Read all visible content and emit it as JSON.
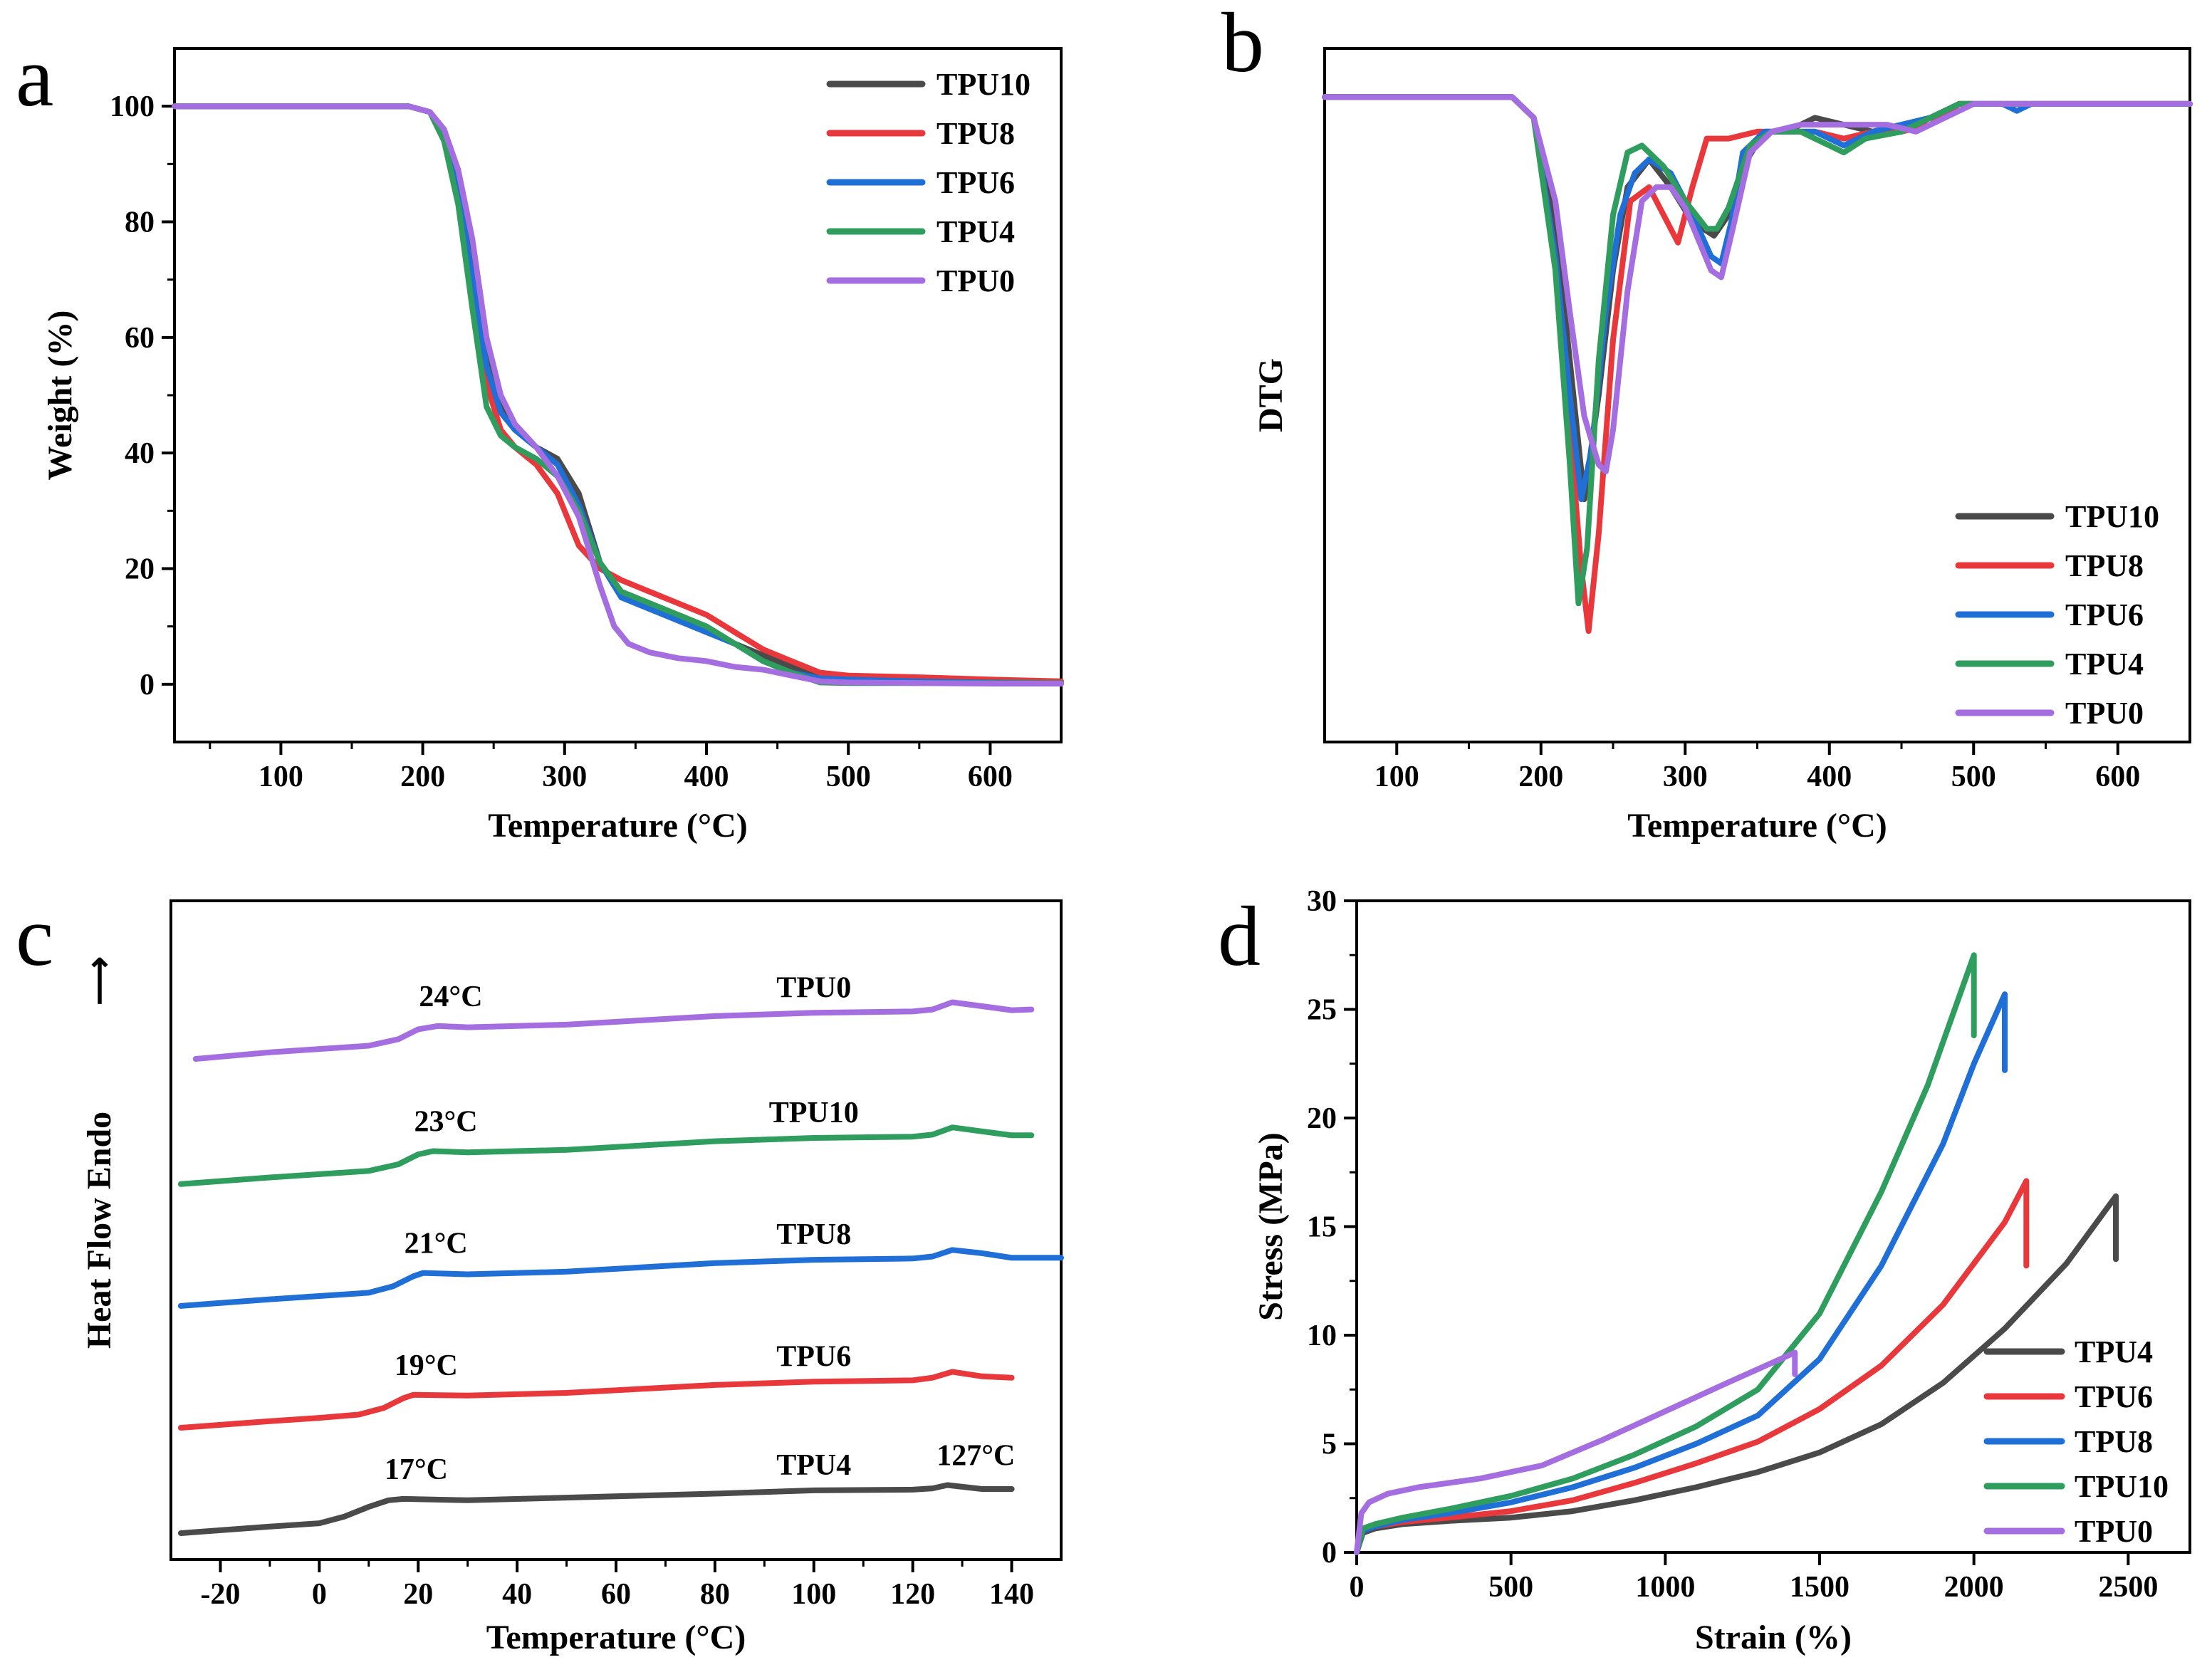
{
  "chart_data": [
    {
      "panel": "a",
      "type": "line",
      "xlabel": "Temperature (°C)",
      "ylabel": "Weight (%)",
      "xlim": [
        25,
        650
      ],
      "ylim": [
        -10,
        110
      ],
      "xticks": [
        100,
        200,
        300,
        400,
        500,
        600
      ],
      "yticks": [
        0,
        20,
        40,
        60,
        80,
        100
      ],
      "legend_position": "top-right",
      "series": [
        {
          "name": "TPU10",
          "color": "#4a4a4a",
          "x": [
            25,
            190,
            205,
            215,
            225,
            235,
            245,
            255,
            265,
            280,
            295,
            310,
            325,
            340,
            360,
            380,
            400,
            420,
            440,
            460,
            480,
            500,
            550,
            600,
            650
          ],
          "y": [
            100,
            100,
            99,
            96,
            88,
            74,
            58,
            48,
            44,
            41,
            39,
            33,
            21,
            16,
            14,
            12,
            10,
            7,
            5,
            3,
            1,
            0.5,
            0.3,
            0.2,
            0.1
          ]
        },
        {
          "name": "TPU8",
          "color": "#e8383b",
          "x": [
            25,
            190,
            205,
            215,
            225,
            235,
            245,
            255,
            265,
            280,
            295,
            310,
            325,
            340,
            360,
            380,
            400,
            420,
            440,
            460,
            480,
            500,
            550,
            600,
            650
          ],
          "y": [
            100,
            100,
            99,
            95,
            85,
            68,
            52,
            44,
            41,
            38,
            33,
            24,
            20,
            18,
            16,
            14,
            12,
            9,
            6,
            4,
            2,
            1.5,
            1.2,
            0.8,
            0.5
          ]
        },
        {
          "name": "TPU6",
          "color": "#1f6fd6",
          "x": [
            25,
            190,
            205,
            215,
            225,
            235,
            245,
            255,
            265,
            280,
            295,
            310,
            325,
            340,
            360,
            380,
            400,
            420,
            440,
            460,
            480,
            500,
            550,
            600,
            650
          ],
          "y": [
            100,
            100,
            99,
            95,
            86,
            70,
            55,
            47,
            44,
            41,
            38,
            31,
            21,
            15,
            13,
            11,
            9,
            7,
            4,
            2,
            1,
            0.8,
            0.5,
            0.3,
            0.2
          ]
        },
        {
          "name": "TPU4",
          "color": "#2e9d5d",
          "x": [
            25,
            190,
            205,
            215,
            225,
            235,
            245,
            255,
            265,
            280,
            295,
            310,
            325,
            340,
            360,
            380,
            400,
            420,
            440,
            460,
            480,
            500,
            550,
            600,
            650
          ],
          "y": [
            100,
            100,
            99,
            94,
            83,
            65,
            48,
            43,
            41,
            39,
            36,
            30,
            21,
            16,
            14,
            12,
            10,
            7,
            4,
            2,
            0.3,
            0.2,
            0.2,
            0.2,
            0.2
          ]
        },
        {
          "name": "TPU0",
          "color": "#a56ee0",
          "x": [
            25,
            190,
            205,
            215,
            225,
            235,
            245,
            255,
            265,
            280,
            295,
            310,
            325,
            335,
            345,
            360,
            380,
            400,
            420,
            440,
            460,
            480,
            500,
            550,
            600,
            650
          ],
          "y": [
            100,
            100,
            99,
            96,
            89,
            77,
            60,
            50,
            45,
            41,
            36,
            29,
            17,
            10,
            7,
            5.5,
            4.5,
            4,
            3,
            2.5,
            1.5,
            0.5,
            0.3,
            0.2,
            0.1,
            0.1
          ]
        }
      ]
    },
    {
      "panel": "b",
      "type": "line",
      "xlabel": "Temperature (°C)",
      "ylabel": "DTG",
      "xlim": [
        50,
        650
      ],
      "ylim": [
        0,
        1
      ],
      "xticks": [
        100,
        200,
        300,
        400,
        500,
        600
      ],
      "yticks": [],
      "legend_position": "bottom-right",
      "series": [
        {
          "name": "TPU10",
          "color": "#4a4a4a",
          "x": [
            50,
            180,
            195,
            210,
            220,
            230,
            240,
            250,
            260,
            275,
            290,
            305,
            320,
            330,
            340,
            355,
            370,
            390,
            410,
            430,
            450,
            470,
            490,
            520,
            550,
            600,
            650
          ],
          "y": [
            0.93,
            0.93,
            0.9,
            0.75,
            0.55,
            0.35,
            0.5,
            0.68,
            0.8,
            0.84,
            0.8,
            0.75,
            0.73,
            0.76,
            0.83,
            0.88,
            0.88,
            0.9,
            0.89,
            0.88,
            0.89,
            0.9,
            0.92,
            0.92,
            0.92,
            0.92,
            0.92
          ]
        },
        {
          "name": "TPU8",
          "color": "#e8383b",
          "x": [
            50,
            180,
            195,
            210,
            220,
            228,
            233,
            240,
            250,
            262,
            275,
            285,
            295,
            305,
            315,
            330,
            350,
            370,
            390,
            410,
            430,
            450,
            470,
            490,
            520,
            550,
            600,
            650
          ],
          "y": [
            0.93,
            0.93,
            0.9,
            0.7,
            0.45,
            0.25,
            0.16,
            0.3,
            0.58,
            0.78,
            0.8,
            0.76,
            0.72,
            0.8,
            0.87,
            0.87,
            0.88,
            0.88,
            0.88,
            0.87,
            0.88,
            0.88,
            0.89,
            0.92,
            0.92,
            0.92,
            0.92,
            0.92
          ]
        },
        {
          "name": "TPU6",
          "color": "#1f6fd6",
          "x": [
            50,
            180,
            195,
            210,
            220,
            228,
            235,
            245,
            255,
            265,
            275,
            290,
            305,
            318,
            325,
            332,
            340,
            355,
            370,
            390,
            410,
            430,
            450,
            470,
            490,
            520,
            530,
            540,
            600,
            650
          ],
          "y": [
            0.93,
            0.93,
            0.9,
            0.7,
            0.5,
            0.35,
            0.42,
            0.62,
            0.76,
            0.82,
            0.84,
            0.82,
            0.76,
            0.7,
            0.69,
            0.75,
            0.85,
            0.88,
            0.88,
            0.88,
            0.86,
            0.88,
            0.89,
            0.9,
            0.92,
            0.92,
            0.91,
            0.92,
            0.92,
            0.92
          ]
        },
        {
          "name": "TPU4",
          "color": "#2e9d5d",
          "x": [
            50,
            180,
            195,
            210,
            220,
            226,
            232,
            240,
            250,
            260,
            270,
            285,
            300,
            315,
            322,
            330,
            345,
            360,
            380,
            400,
            410,
            425,
            450,
            470,
            490,
            520,
            550,
            600,
            650
          ],
          "y": [
            0.93,
            0.93,
            0.9,
            0.68,
            0.4,
            0.2,
            0.28,
            0.55,
            0.76,
            0.85,
            0.86,
            0.83,
            0.78,
            0.74,
            0.74,
            0.77,
            0.86,
            0.88,
            0.88,
            0.86,
            0.85,
            0.87,
            0.88,
            0.9,
            0.92,
            0.92,
            0.92,
            0.92,
            0.92
          ]
        },
        {
          "name": "TPU0",
          "color": "#a56ee0",
          "x": [
            50,
            180,
            195,
            210,
            220,
            230,
            240,
            245,
            250,
            260,
            270,
            280,
            290,
            300,
            310,
            318,
            325,
            333,
            345,
            360,
            380,
            400,
            420,
            440,
            460,
            480,
            500,
            550,
            600,
            650
          ],
          "y": [
            0.93,
            0.93,
            0.9,
            0.78,
            0.62,
            0.47,
            0.4,
            0.39,
            0.45,
            0.65,
            0.78,
            0.8,
            0.8,
            0.77,
            0.72,
            0.68,
            0.67,
            0.74,
            0.85,
            0.88,
            0.89,
            0.89,
            0.89,
            0.89,
            0.88,
            0.9,
            0.92,
            0.92,
            0.92,
            0.92
          ]
        }
      ]
    },
    {
      "panel": "c",
      "type": "line",
      "xlabel": "Temperature (°C)",
      "ylabel": "Heat Flow Endo",
      "ylabel_arrow": "⟶",
      "xlim": [
        -30,
        150
      ],
      "ylim": [
        0,
        1
      ],
      "xticks": [
        -20,
        0,
        20,
        40,
        60,
        80,
        100,
        120,
        140
      ],
      "yticks": [],
      "series": [
        {
          "name": "TPU0",
          "color": "#a56ee0",
          "label": "TPU0",
          "transition_label": "24°C",
          "x": [
            -25,
            -10,
            0,
            10,
            16,
            20,
            24,
            30,
            50,
            80,
            100,
            120,
            124,
            128,
            134,
            140,
            144
          ],
          "y": [
            0.76,
            0.77,
            0.775,
            0.78,
            0.79,
            0.805,
            0.81,
            0.808,
            0.812,
            0.825,
            0.83,
            0.832,
            0.835,
            0.846,
            0.84,
            0.834,
            0.835
          ]
        },
        {
          "name": "TPU10",
          "color": "#2e9d5d",
          "label": "TPU10",
          "transition_label": "23°C",
          "x": [
            -28,
            -10,
            0,
            10,
            16,
            20,
            23,
            30,
            50,
            80,
            100,
            120,
            124,
            128,
            134,
            140,
            144
          ],
          "y": [
            0.57,
            0.58,
            0.585,
            0.59,
            0.6,
            0.615,
            0.62,
            0.618,
            0.622,
            0.635,
            0.64,
            0.642,
            0.645,
            0.656,
            0.65,
            0.644,
            0.644
          ]
        },
        {
          "name": "TPU8",
          "color": "#1f6fd6",
          "label": "TPU8",
          "transition_label": "21°C",
          "x": [
            -28,
            -10,
            0,
            10,
            15,
            19,
            21,
            30,
            50,
            80,
            100,
            120,
            124,
            128,
            134,
            140,
            150
          ],
          "y": [
            0.385,
            0.395,
            0.4,
            0.405,
            0.415,
            0.43,
            0.435,
            0.433,
            0.437,
            0.45,
            0.455,
            0.457,
            0.46,
            0.47,
            0.465,
            0.458,
            0.458
          ]
        },
        {
          "name": "TPU6",
          "color": "#e8383b",
          "label": "TPU6",
          "transition_label": "19°C",
          "x": [
            -28,
            -10,
            0,
            8,
            13,
            17,
            19,
            30,
            50,
            80,
            100,
            120,
            124,
            128,
            134,
            140
          ],
          "y": [
            0.2,
            0.21,
            0.215,
            0.22,
            0.23,
            0.245,
            0.25,
            0.249,
            0.253,
            0.265,
            0.27,
            0.272,
            0.276,
            0.285,
            0.278,
            0.276
          ]
        },
        {
          "name": "TPU4",
          "color": "#4a4a4a",
          "label": "TPU4",
          "transition_label": "17°C",
          "extra_label": "127°C",
          "x": [
            -28,
            -10,
            0,
            5,
            10,
            14,
            17,
            30,
            50,
            80,
            100,
            120,
            124,
            127,
            134,
            140
          ],
          "y": [
            0.04,
            0.05,
            0.055,
            0.065,
            0.08,
            0.09,
            0.092,
            0.09,
            0.094,
            0.1,
            0.105,
            0.106,
            0.108,
            0.113,
            0.107,
            0.107
          ]
        }
      ]
    },
    {
      "panel": "d",
      "type": "line",
      "xlabel": "Strain (%)",
      "ylabel": "Stress (MPa)",
      "xlim": [
        0,
        2700
      ],
      "ylim": [
        0,
        30
      ],
      "xticks": [
        0,
        500,
        1000,
        1500,
        2000,
        2500
      ],
      "yticks": [
        0,
        5,
        10,
        15,
        20,
        25,
        30
      ],
      "legend_position": "bottom-right",
      "series": [
        {
          "name": "TPU4",
          "color": "#4a4a4a",
          "x": [
            0,
            20,
            60,
            150,
            300,
            500,
            700,
            900,
            1100,
            1300,
            1500,
            1700,
            1900,
            2100,
            2300,
            2460,
            2460
          ],
          "y": [
            0,
            0.9,
            1.1,
            1.3,
            1.45,
            1.6,
            1.9,
            2.4,
            3.0,
            3.7,
            4.6,
            5.9,
            7.8,
            10.3,
            13.3,
            16.4,
            13.5
          ]
        },
        {
          "name": "TPU6",
          "color": "#e8383b",
          "x": [
            0,
            20,
            60,
            150,
            300,
            500,
            700,
            900,
            1100,
            1300,
            1500,
            1700,
            1900,
            2100,
            2170,
            2170
          ],
          "y": [
            0,
            1.0,
            1.2,
            1.4,
            1.6,
            1.9,
            2.4,
            3.2,
            4.1,
            5.1,
            6.6,
            8.6,
            11.4,
            15.2,
            17.1,
            13.2
          ]
        },
        {
          "name": "TPU8",
          "color": "#1f6fd6",
          "x": [
            0,
            20,
            60,
            150,
            300,
            500,
            700,
            900,
            1100,
            1300,
            1500,
            1700,
            1900,
            2000,
            2100,
            2100
          ],
          "y": [
            0,
            1.0,
            1.2,
            1.5,
            1.8,
            2.3,
            3.0,
            3.9,
            5.0,
            6.3,
            8.9,
            13.2,
            18.8,
            22.5,
            25.7,
            22.2
          ]
        },
        {
          "name": "TPU10",
          "color": "#2e9d5d",
          "x": [
            0,
            20,
            60,
            150,
            300,
            500,
            700,
            900,
            1100,
            1300,
            1500,
            1700,
            1850,
            2000,
            2000
          ],
          "y": [
            0,
            1.1,
            1.3,
            1.6,
            2.0,
            2.6,
            3.4,
            4.5,
            5.8,
            7.5,
            11.0,
            16.6,
            21.5,
            27.5,
            23.8
          ]
        },
        {
          "name": "TPU0",
          "color": "#a56ee0",
          "x": [
            0,
            15,
            40,
            100,
            200,
            400,
            600,
            800,
            1000,
            1200,
            1420,
            1420
          ],
          "y": [
            0,
            1.8,
            2.3,
            2.7,
            3.0,
            3.4,
            4.0,
            5.2,
            6.5,
            7.8,
            9.2,
            8.2
          ]
        }
      ]
    }
  ]
}
